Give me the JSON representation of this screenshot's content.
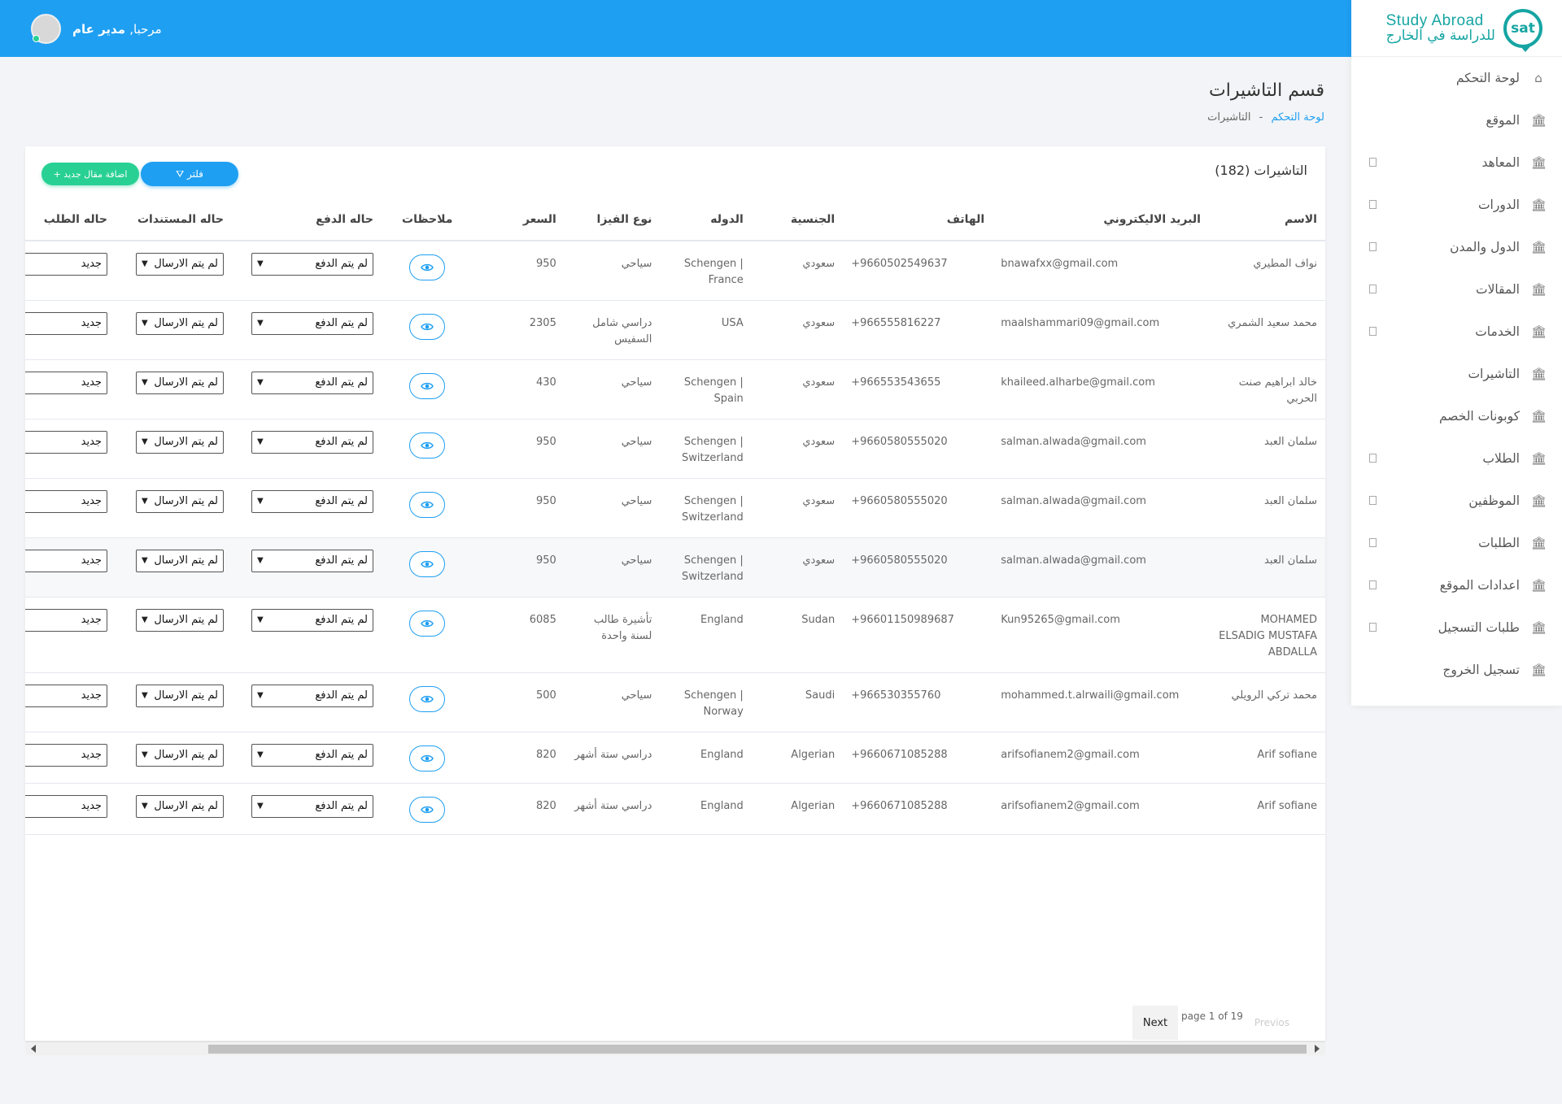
{
  "header": {
    "greeting_hello": "مرحبا,",
    "greeting_name": "مدير عام"
  },
  "logo": {
    "mark": "sat",
    "en": "Study Abroad",
    "ar": "للدراسة في الخارج",
    "color": "#16a5a3"
  },
  "sidebar": {
    "items": [
      {
        "label": "لوحة التحكم",
        "icon": "home-icon",
        "caret": false
      },
      {
        "label": "الموقع",
        "icon": "bank-icon",
        "caret": false
      },
      {
        "label": "المعاهد",
        "icon": "bank-icon",
        "caret": true
      },
      {
        "label": "الدورات",
        "icon": "bank-icon",
        "caret": true
      },
      {
        "label": "الدول والمدن",
        "icon": "bank-icon",
        "caret": true
      },
      {
        "label": "المقالات",
        "icon": "bank-icon",
        "caret": true
      },
      {
        "label": "الخدمات",
        "icon": "bank-icon",
        "caret": true
      },
      {
        "label": "التاشيرات",
        "icon": "bank-icon",
        "caret": false
      },
      {
        "label": "كوبونات الخصم",
        "icon": "bank-icon",
        "caret": false
      },
      {
        "label": "الطلاب",
        "icon": "bank-icon",
        "caret": true
      },
      {
        "label": "الموظفين",
        "icon": "bank-icon",
        "caret": true
      },
      {
        "label": "الطلبات",
        "icon": "bank-icon",
        "caret": true
      },
      {
        "label": "اعدادات الموقع",
        "icon": "bank-icon",
        "caret": true
      },
      {
        "label": "طلبات التسجيل",
        "icon": "bank-icon",
        "caret": true
      },
      {
        "label": "تسجيل الخروج",
        "icon": "bank-icon",
        "caret": false
      }
    ]
  },
  "page": {
    "title": "قسم التاشيرات",
    "breadcrumb_home": "لوحة التحكم",
    "breadcrumb_sep": "-",
    "breadcrumb_current": "التاشيرات"
  },
  "card": {
    "title": "التاشيرات (182)",
    "filter_label": "فلتر",
    "add_label": "+ اضافة مقال جديد"
  },
  "table": {
    "headers": [
      "الاسم",
      "البريد الاليكتروني",
      "الهاتف",
      "الجنسية",
      "الدوله",
      "نوع الفيزا",
      "السعر",
      "ملاحظات",
      "حاله الدفع",
      "حاله المستندات",
      "حاله الطلب"
    ],
    "rows": [
      {
        "name": "نواف المطيري",
        "email": "bnawafxx@gmail.com",
        "phone": "+9660502549637",
        "nationality": "سعودي",
        "country": "Schengen | France",
        "visa": "سياحي",
        "price": "950",
        "payment": "لم يتم الدفع",
        "docs": "لم يتم الارسال",
        "request": "جديد"
      },
      {
        "name": "محمد سعيد الشمري",
        "email": "maalshammari09@gmail.com",
        "phone": "+966555816227",
        "nationality": "سعودي",
        "country": "USA",
        "visa": "دراسي شامل السفيس",
        "price": "2305",
        "payment": "لم يتم الدفع",
        "docs": "لم يتم الارسال",
        "request": "جديد"
      },
      {
        "name": "خالد ابراهيم صنت الحربي",
        "email": "khaileed.alharbe@gmail.com",
        "phone": "+966553543655",
        "nationality": "سعودي",
        "country": "Schengen | Spain",
        "visa": "سياحي",
        "price": "430",
        "payment": "لم يتم الدفع",
        "docs": "لم يتم الارسال",
        "request": "جديد"
      },
      {
        "name": "سلمان العبد",
        "email": "salman.alwada@gmail.com",
        "phone": "+9660580555020",
        "nationality": "سعودي",
        "country": "Schengen | Switzerland",
        "visa": "سياحي",
        "price": "950",
        "payment": "لم يتم الدفع",
        "docs": "لم يتم الارسال",
        "request": "جديد"
      },
      {
        "name": "سلمان العبد",
        "email": "salman.alwada@gmail.com",
        "phone": "+9660580555020",
        "nationality": "سعودي",
        "country": "Schengen | Switzerland",
        "visa": "سياحي",
        "price": "950",
        "payment": "لم يتم الدفع",
        "docs": "لم يتم الارسال",
        "request": "جديد"
      },
      {
        "name": "سلمان العبد",
        "email": "salman.alwada@gmail.com",
        "phone": "+9660580555020",
        "nationality": "سعودي",
        "country": "Schengen | Switzerland",
        "visa": "سياحي",
        "price": "950",
        "payment": "لم يتم الدفع",
        "docs": "لم يتم الارسال",
        "request": "جديد",
        "highlight": true
      },
      {
        "name": "MOHAMED ELSADIG MUSTAFA ABDALLA",
        "email": "Kun95265@gmail.com",
        "phone": "+96601150989687",
        "nationality": "Sudan",
        "country": "England",
        "visa": "تأشيرة طالب لسنة واحدة",
        "price": "6085",
        "payment": "لم يتم الدفع",
        "docs": "لم يتم الارسال",
        "request": "جديد"
      },
      {
        "name": "محمد تركي الرويلي",
        "email": "mohammed.t.alrwaili@gmail.com",
        "phone": "+966530355760",
        "nationality": "Saudi",
        "country": "Schengen | Norway",
        "visa": "سياحي",
        "price": "500",
        "payment": "لم يتم الدفع",
        "docs": "لم يتم الارسال",
        "request": "جديد"
      },
      {
        "name": "Arif sofiane",
        "email": "arifsofianem2@gmail.com",
        "phone": "+9660671085288",
        "nationality": "Algerian",
        "country": "England",
        "visa": "دراسي ستة أشهر",
        "price": "820",
        "payment": "لم يتم الدفع",
        "docs": "لم يتم الارسال",
        "request": "جديد"
      },
      {
        "name": "Arif sofiane",
        "email": "arifsofianem2@gmail.com",
        "phone": "+9660671085288",
        "nationality": "Algerian",
        "country": "England",
        "visa": "دراسي ستة أشهر",
        "price": "820",
        "payment": "لم يتم الدفع",
        "docs": "لم يتم الارسال",
        "request": "جديد"
      }
    ]
  },
  "pagination": {
    "next": "Next",
    "info": "page 1 of 19",
    "prev": "Previos"
  },
  "colors": {
    "primary": "#1e9ff2",
    "success": "#28d094"
  }
}
